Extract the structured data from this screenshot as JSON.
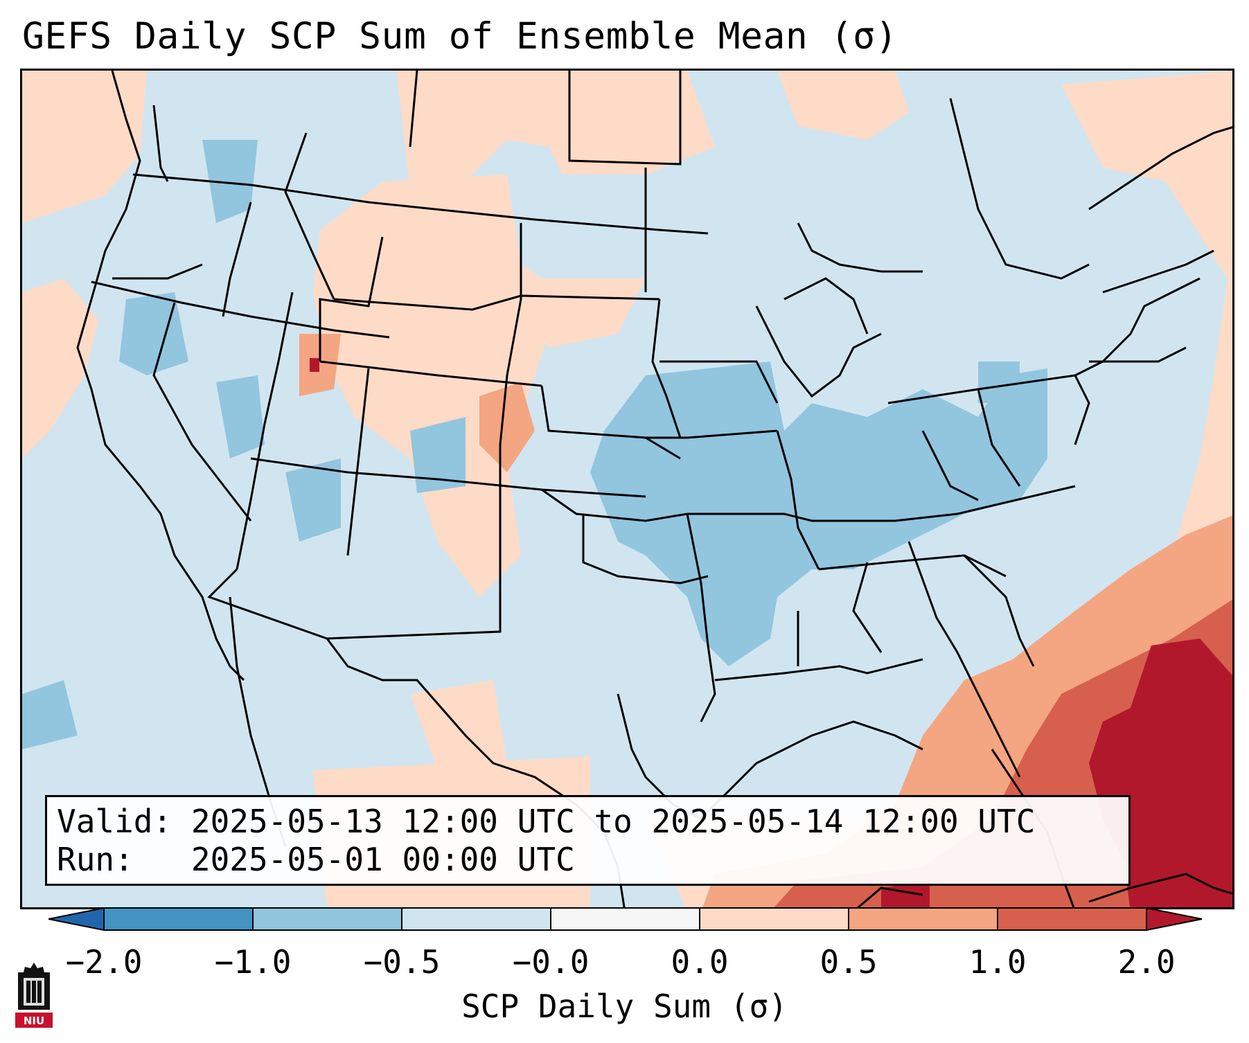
{
  "title": "GEFS Daily SCP Sum of Ensemble Mean (σ)",
  "info": {
    "valid_label": "Valid:",
    "valid_value": "2025-05-13 12:00 UTC to 2025-05-14 12:00 UTC",
    "run_label": "Run:",
    "run_value": "2025-05-01 00:00 UTC"
  },
  "colorbar": {
    "label": "SCP Daily Sum (σ)",
    "ticks": [
      "−2.0",
      "−1.0",
      "−0.5",
      "−0.0",
      "0.0",
      "0.5",
      "1.0",
      "2.0"
    ],
    "colors": [
      "#4393c3",
      "#92c5de",
      "#d1e5f0",
      "#f7f7f7",
      "#fddbc7",
      "#f4a582",
      "#d6604d"
    ],
    "extend_low_color": "#2166ac",
    "extend_high_color": "#b2182b"
  },
  "logo": {
    "text": "NIU",
    "color": "#c8102e"
  }
}
